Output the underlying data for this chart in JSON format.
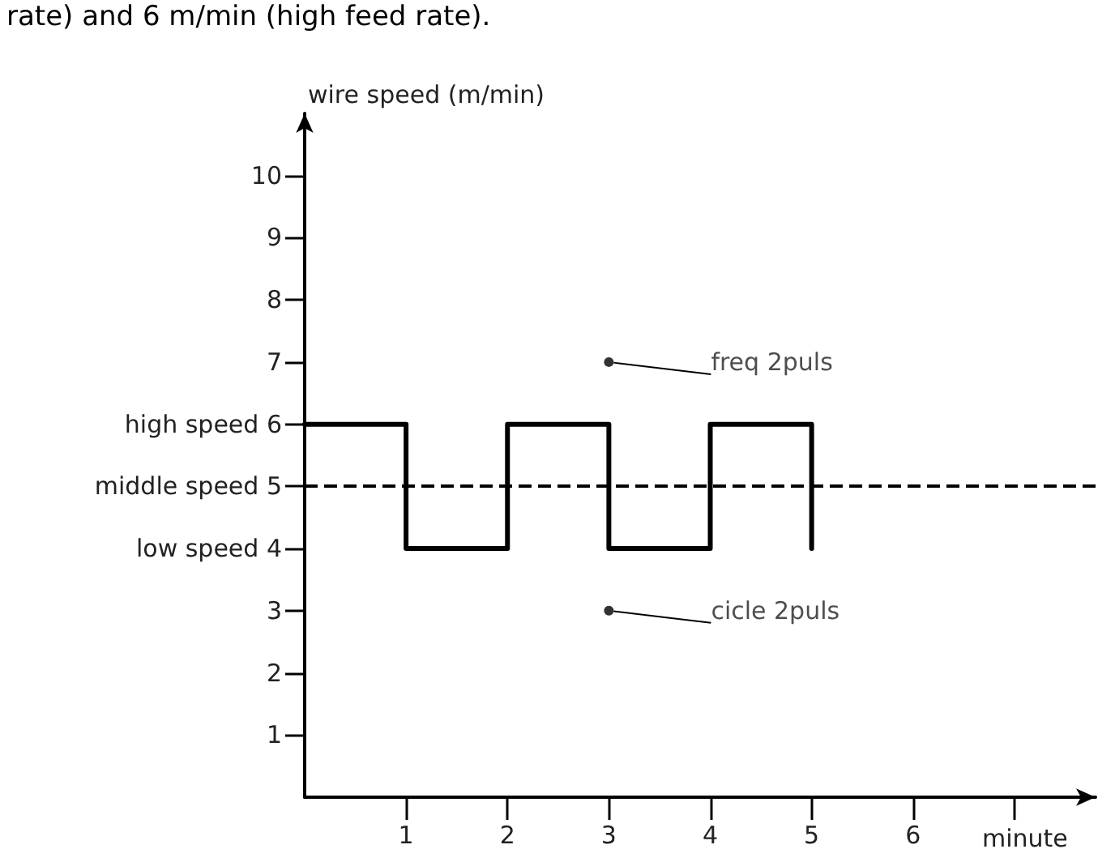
{
  "chart_data": {
    "type": "step",
    "xlabel": "minute",
    "ylabel": "wire speed (m/min)",
    "annotations": [
      "rate) and 6 m/min (high feed rate).",
      {
        "text": "freq 2puls",
        "x": 3,
        "y": 7
      },
      {
        "text": "cicle 2puls",
        "x": 3,
        "y": 3
      }
    ],
    "x": [
      0,
      1,
      2,
      3,
      4,
      5
    ],
    "series": [
      {
        "color": "#000000",
        "values": [
          6,
          4,
          6,
          4,
          6,
          4
        ]
      }
    ],
    "xlim": [
      0,
      7.8
    ],
    "xticks": [
      1,
      2,
      3,
      4,
      5,
      6,
      {
        "value": 7,
        "label": null
      }
    ],
    "ylim": [
      0,
      11
    ],
    "yticks": [
      1,
      2,
      3,
      {
        "value": 4,
        "label": "low speed 4"
      },
      {
        "value": 5,
        "label": "middle speed 5"
      },
      {
        "value": 6,
        "label": "high speed 6"
      },
      7,
      8,
      9,
      10
    ],
    "ref_lines": [
      {
        "axis": "y",
        "value": 5,
        "line_style": "dashed",
        "color": "#000000"
      }
    ],
    "grid": false,
    "marker": "none",
    "line_style": "solid"
  }
}
